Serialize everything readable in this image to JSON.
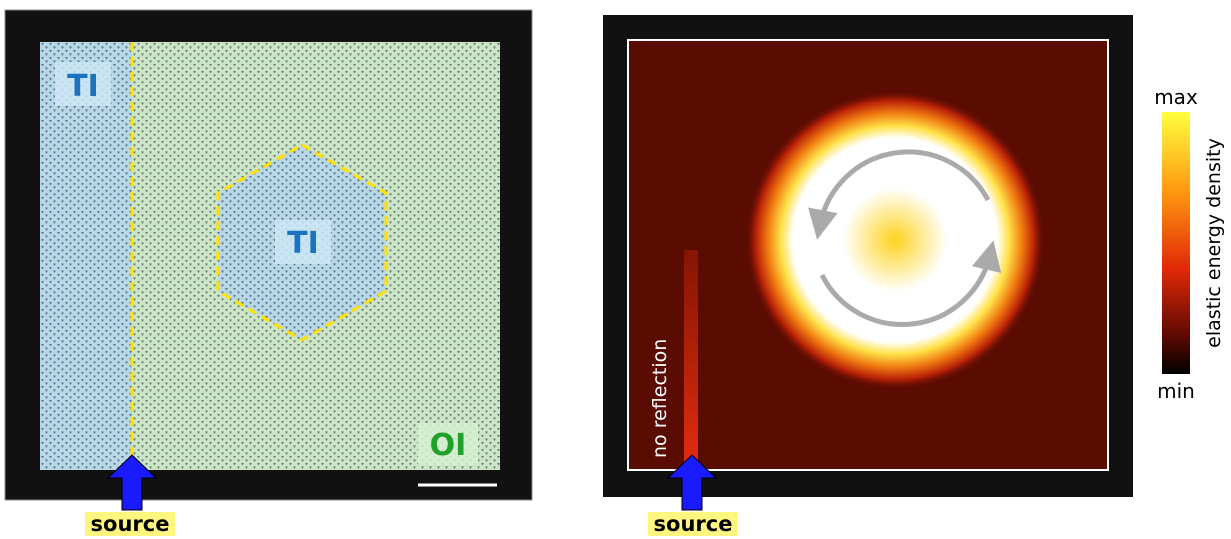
{
  "left_panel": {
    "labels": {
      "ti_strip": "TI",
      "ti_hexagon": "TI",
      "oi": "OI"
    },
    "source": "source"
  },
  "right_panel": {
    "annotation": "no reflection",
    "source": "source",
    "colorbar": {
      "max": "max",
      "min": "min",
      "label": "elastic energy density"
    }
  }
}
